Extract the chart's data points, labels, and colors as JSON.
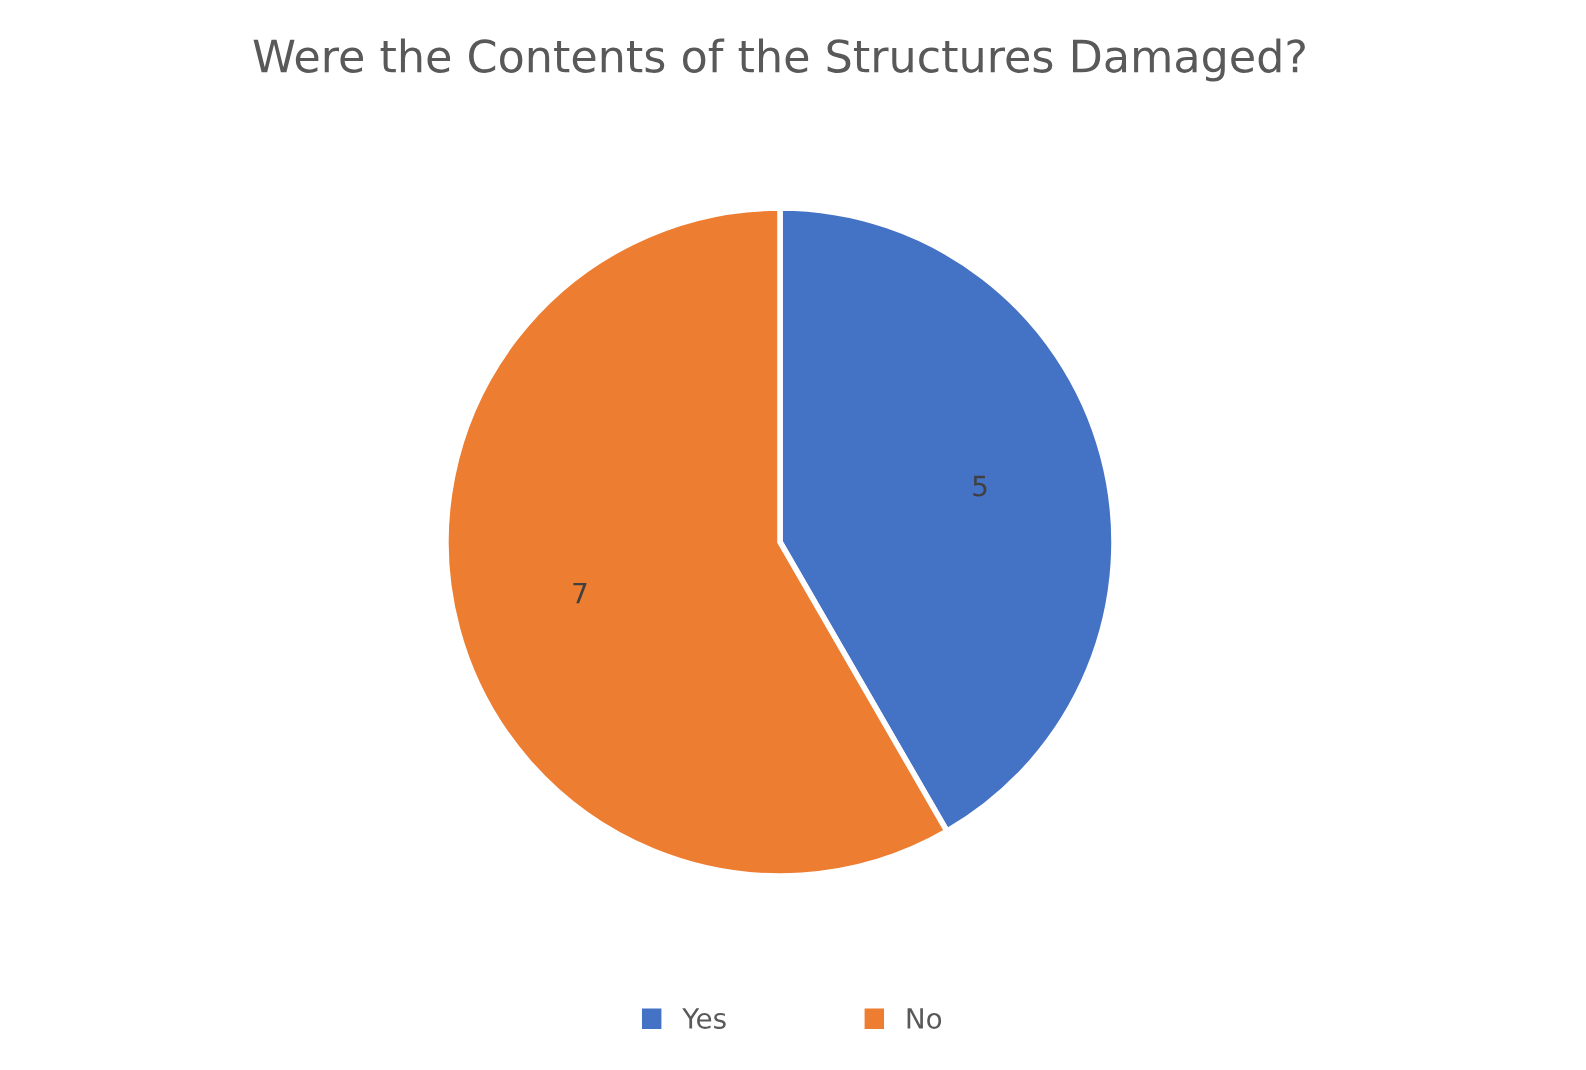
{
  "chart_data": {
    "type": "pie",
    "title": "Were the Contents of the Structures Damaged?",
    "categories": [
      "Yes",
      "No"
    ],
    "values": [
      5,
      7
    ],
    "colors": [
      "#4472c4",
      "#ed7d31"
    ],
    "data_labels": true,
    "legend": "bottom"
  }
}
